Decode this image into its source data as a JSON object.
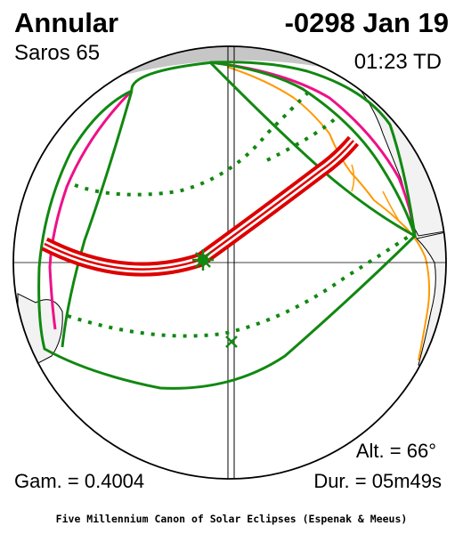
{
  "header": {
    "eclipse_type": "Annular",
    "date": "-0298 Jan 19",
    "saros": "Saros  65",
    "time": "01:23 TD"
  },
  "footer_stats": {
    "altitude": "Alt. = 66°",
    "gamma": "Gam. = 0.4004",
    "duration": "Dur. = 05m49s"
  },
  "credit": "Five Millennium Canon of Solar Eclipses (Espenak & Meeus)",
  "colors": {
    "central_path": "#dd0000",
    "penumbra_limits": "#118811",
    "rise_set_curves": "#ee1188",
    "coastline": "#ff9900",
    "night_shading": "#c0c0c0"
  },
  "markers": {
    "greatest_eclipse": "star-marker",
    "sub_solar_point": "x-marker"
  }
}
